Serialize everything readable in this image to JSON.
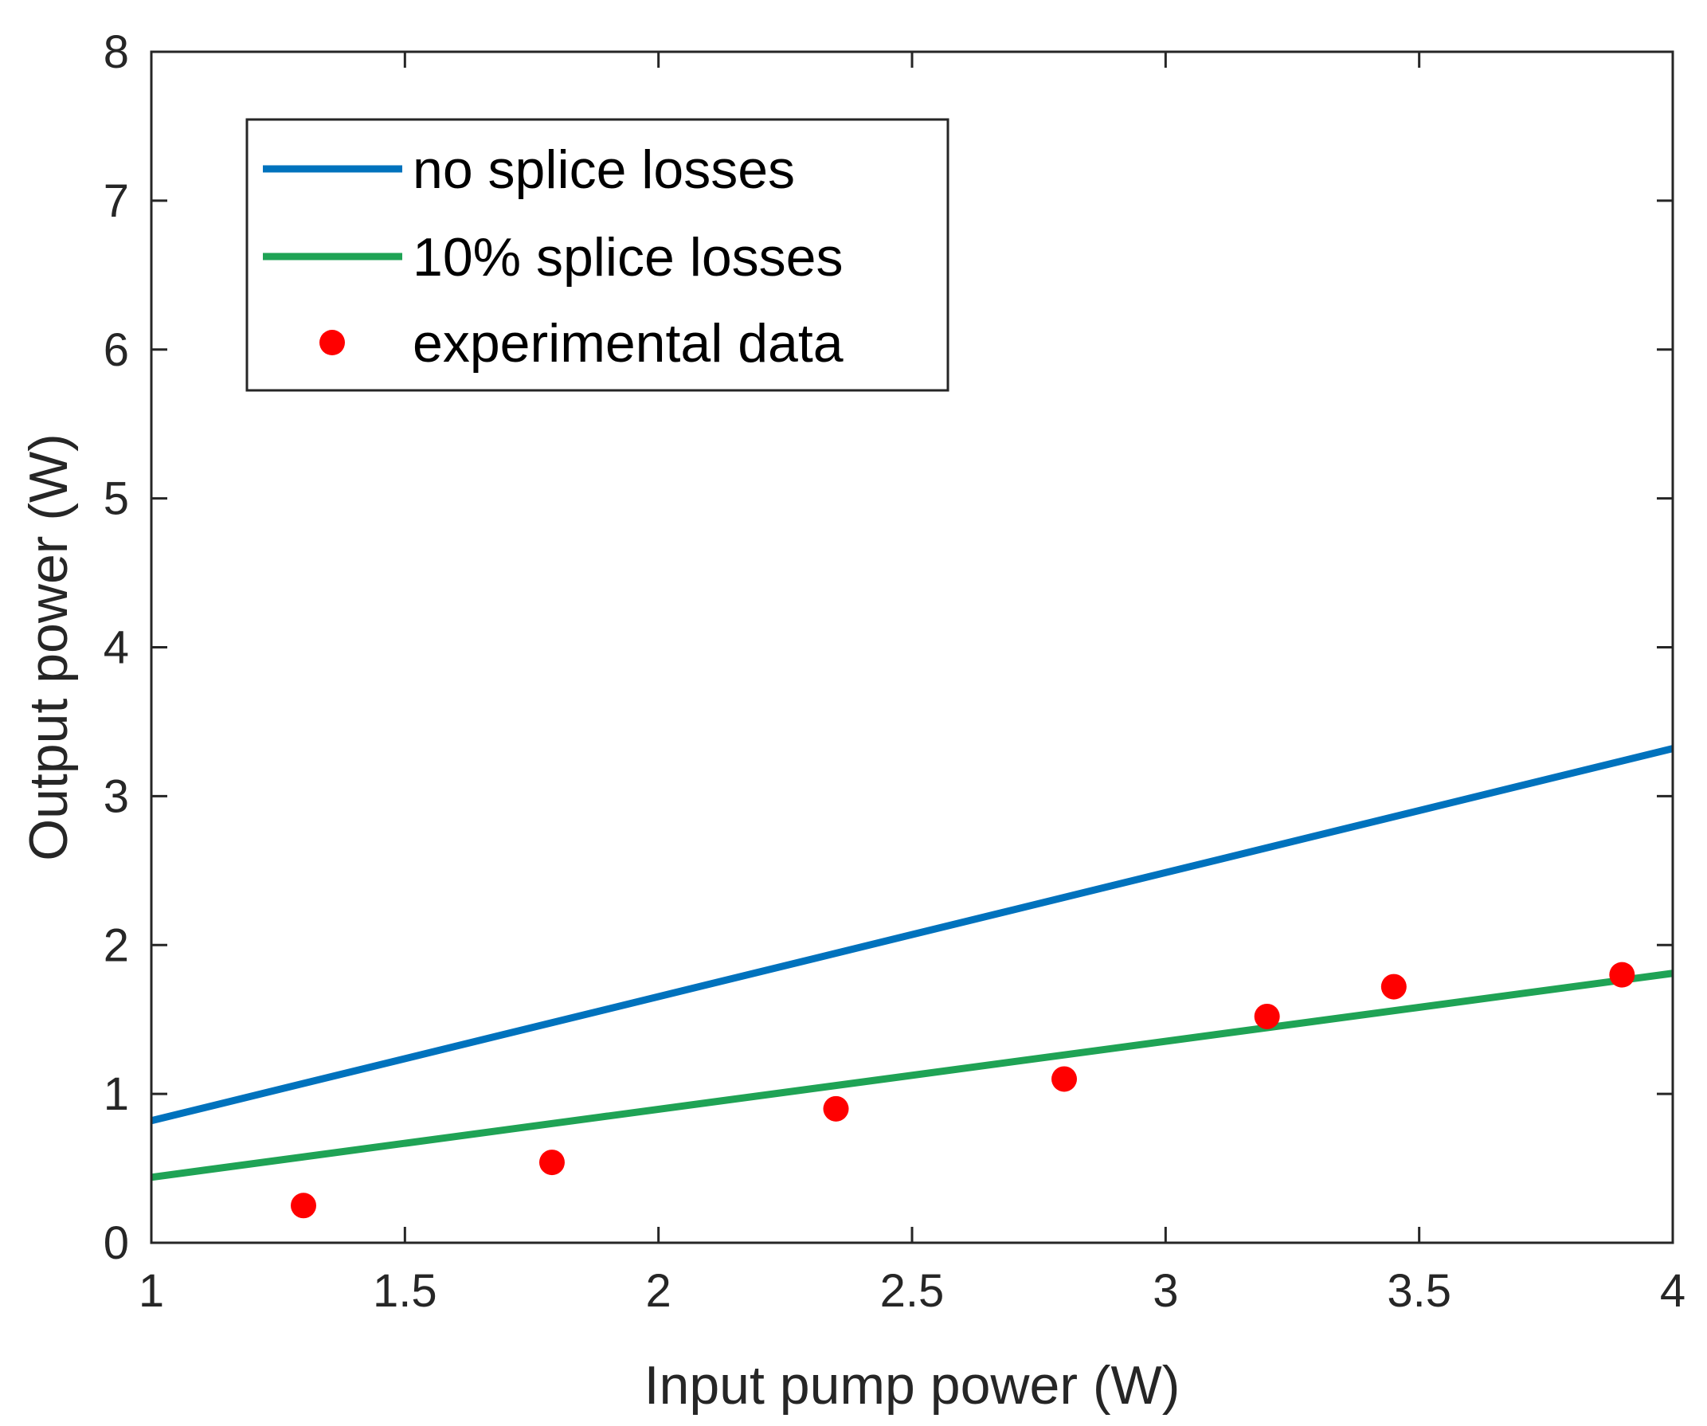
{
  "chart_data": {
    "type": "line",
    "title": "",
    "xlabel": "Input pump power (W)",
    "ylabel": "Output power (W)",
    "xlim": [
      1,
      4
    ],
    "ylim": [
      0,
      8
    ],
    "xticks": [
      1,
      1.5,
      2,
      2.5,
      3,
      3.5,
      4
    ],
    "xtick_labels": [
      "1",
      "1.5",
      "2",
      "2.5",
      "3",
      "3.5",
      "4"
    ],
    "yticks": [
      0,
      1,
      2,
      3,
      4,
      5,
      6,
      7,
      8
    ],
    "ytick_labels": [
      "0",
      "1",
      "2",
      "3",
      "4",
      "5",
      "6",
      "7",
      "8"
    ],
    "grid": false,
    "legend_position": "top-left",
    "series": [
      {
        "name": "no splice losses",
        "kind": "line",
        "color": "#0072BD",
        "x": [
          1,
          4
        ],
        "y": [
          0.82,
          3.32
        ]
      },
      {
        "name": "10% splice losses",
        "kind": "line",
        "color": "#1FA355",
        "x": [
          1,
          4
        ],
        "y": [
          0.44,
          1.81
        ]
      },
      {
        "name": "experimental data",
        "kind": "scatter",
        "color": "#FF0000",
        "x": [
          1.3,
          1.79,
          2.35,
          2.8,
          3.2,
          3.45,
          3.9
        ],
        "y": [
          0.25,
          0.54,
          0.9,
          1.1,
          1.52,
          1.72,
          1.8
        ]
      }
    ]
  }
}
